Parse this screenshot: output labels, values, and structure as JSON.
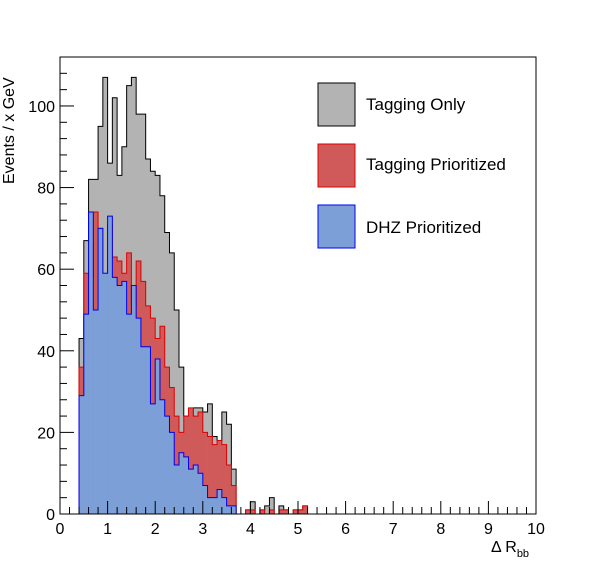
{
  "chart_data": {
    "type": "histogram",
    "xlabel": "Δ R",
    "xlabel_subscript": "bb",
    "ylabel": "Events / x GeV",
    "xlim": [
      0,
      10
    ],
    "ylim": [
      0,
      112
    ],
    "x_ticks": [
      0,
      1,
      2,
      3,
      4,
      5,
      6,
      7,
      8,
      9,
      10
    ],
    "y_ticks": [
      0,
      20,
      40,
      60,
      80,
      100
    ],
    "bin_width": 0.1,
    "first_bin_low_edge": 0.4,
    "series": [
      {
        "name": "Tagging Only",
        "fill": "#b3b3b3",
        "stroke": "#000000",
        "values": [
          43,
          67,
          82,
          82,
          95,
          107,
          86,
          102,
          83,
          90,
          105,
          107,
          98,
          98,
          87,
          84,
          83,
          78,
          69,
          64,
          50,
          36,
          24,
          22,
          26,
          26,
          25,
          27,
          19,
          18,
          25,
          22,
          11,
          0,
          0,
          1,
          3,
          0,
          1,
          2,
          4,
          0,
          2,
          1,
          0,
          1,
          1,
          2
        ]
      },
      {
        "name": "Tagging Prioritized",
        "fill": "#d05a5a",
        "stroke": "#dd0000",
        "values": [
          36,
          59,
          58,
          74,
          70,
          53,
          71,
          63,
          62,
          59,
          64,
          51,
          62,
          57,
          51,
          48,
          43,
          46,
          36,
          31,
          24,
          20,
          24,
          26,
          24,
          25,
          20,
          19,
          17,
          18,
          17,
          12,
          7,
          0,
          0,
          1,
          1,
          0,
          1,
          0,
          1,
          0,
          1,
          1,
          0,
          1,
          1,
          2
        ]
      },
      {
        "name": "DHZ Prioritized",
        "fill": "#7b9fd6",
        "stroke": "#0000ee",
        "values": [
          29,
          49,
          74,
          50,
          70,
          59,
          73,
          58,
          56,
          57,
          49,
          56,
          48,
          41,
          41,
          27,
          38,
          28,
          24,
          20,
          12,
          15,
          14,
          11,
          12,
          10,
          7,
          4,
          4,
          6,
          4,
          2,
          2,
          0,
          0,
          0,
          0,
          0,
          0,
          0,
          0,
          0,
          0,
          0,
          0,
          0,
          0,
          0
        ]
      }
    ],
    "legend_position": "top-right"
  }
}
